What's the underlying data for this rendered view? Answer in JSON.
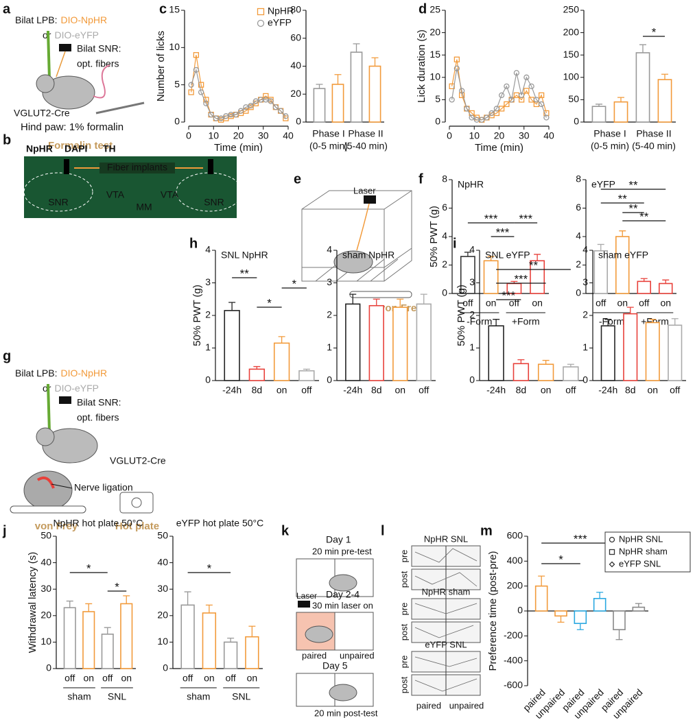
{
  "panel_labels": [
    "a",
    "b",
    "c",
    "d",
    "e",
    "f",
    "g",
    "h",
    "i",
    "j",
    "k",
    "l",
    "m"
  ],
  "diagrams": {
    "a": {
      "lpb": "Bilat LPB:",
      "nphr": "DIO-NpHR",
      "or": "or",
      "eyfp": "DIO-eYFP",
      "snr": "Bilat SNR:",
      "fibers": "opt. fibers",
      "cre": "VGLUT2-Cre",
      "paw": "Hind paw: 1% formalin",
      "test": "Formalin test"
    },
    "b": {
      "nphr": "NpHR",
      "dapi": "DAPI",
      "th": "TH",
      "fiber": "Fiber implants",
      "regions": [
        "SNR",
        "VTA",
        "VTA",
        "SNR",
        "MM"
      ]
    },
    "e": {
      "laser": "Laser",
      "test": "von Frey"
    },
    "g": {
      "lpb": "Bilat LPB:",
      "nphr": "DIO-NpHR",
      "or": "or",
      "eyfp": "DIO-eYFP",
      "snr": "Bilat SNR:",
      "fibers": "opt. fibers",
      "cre": "VGLUT2-Cre",
      "ligation": "Nerve ligation",
      "test1": "von Frey",
      "test2": "Hot plate"
    },
    "k": {
      "day1": "Day 1",
      "pre": "20 min pre-test",
      "laser": "Laser",
      "day2": "Day 2-4",
      "laser_on": "30 min laser on",
      "paired": "paired",
      "unpaired": "unpaired",
      "day5": "Day 5",
      "post": "20 min post-test"
    },
    "l": {
      "rows": [
        {
          "title": "NpHR SNL",
          "labels": [
            "pre",
            "post"
          ]
        },
        {
          "title": "NpHR sham",
          "labels": [
            "pre",
            "post"
          ]
        },
        {
          "title": "eYFP SNL",
          "labels": [
            "pre",
            "post"
          ]
        }
      ],
      "paired": "paired",
      "unpaired": "unpaired"
    }
  },
  "chart_data": [
    {
      "type": "line",
      "ylabel": "Number of licks",
      "xlabel": "Time (min)",
      "legend": "upper right",
      "x": [
        1,
        3,
        5,
        7,
        9,
        11,
        13,
        15,
        17,
        19,
        21,
        23,
        25,
        27,
        29,
        31,
        33,
        35,
        37,
        39
      ],
      "xlim": [
        0,
        40
      ],
      "xticks": [
        0,
        10,
        20,
        30,
        40
      ],
      "ylim": [
        0,
        15
      ],
      "yticks": [
        0,
        5,
        10,
        15
      ],
      "series": [
        {
          "name": "NpHR",
          "color": "#f29a3a",
          "marker": "square",
          "values": [
            4,
            9,
            5,
            3,
            1,
            0.5,
            0.3,
            0.5,
            0.8,
            1,
            1.2,
            1.5,
            2,
            2.5,
            3,
            3.5,
            3,
            2,
            1.5,
            0.5
          ]
        },
        {
          "name": "eYFP",
          "color": "#999999",
          "marker": "circle",
          "values": [
            5,
            7,
            4,
            2.5,
            1,
            0.5,
            0.5,
            0.8,
            1,
            1,
            1.5,
            2,
            2.2,
            2.8,
            3,
            3,
            2.8,
            2,
            1.5,
            0.8
          ]
        }
      ]
    },
    {
      "type": "bar",
      "groups": [
        "Phase I",
        "Phase II"
      ],
      "group_sublabels": [
        "(0-5 min)",
        "(5-40 min)"
      ],
      "values": [
        24,
        27,
        50,
        40
      ],
      "errors": [
        3,
        7,
        6,
        6
      ],
      "colors": [
        "#999999",
        "#f29a3a",
        "#999999",
        "#f29a3a"
      ],
      "ylim": [
        0,
        80
      ],
      "yticks": [
        0,
        20,
        40,
        60,
        80
      ]
    },
    {
      "type": "line",
      "ylabel": "Lick duration (s)",
      "xlabel": "Time (min)",
      "x": [
        1,
        3,
        5,
        7,
        9,
        11,
        13,
        15,
        17,
        19,
        21,
        23,
        25,
        27,
        29,
        31,
        33,
        35,
        37,
        39
      ],
      "xlim": [
        0,
        40
      ],
      "xticks": [
        0,
        10,
        20,
        30,
        40
      ],
      "ylim": [
        0,
        25
      ],
      "yticks": [
        0,
        5,
        10,
        15,
        20,
        25
      ],
      "series": [
        {
          "name": "NpHR",
          "color": "#f29a3a",
          "marker": "square",
          "values": [
            8,
            14,
            6,
            3,
            2,
            1,
            0.5,
            1,
            1.5,
            2,
            3,
            4,
            5,
            6,
            5,
            7,
            5,
            4,
            6,
            2
          ]
        },
        {
          "name": "eYFP",
          "color": "#999999",
          "marker": "circle",
          "values": [
            5,
            12,
            7,
            3,
            1,
            0.5,
            0.5,
            1,
            2,
            3,
            6,
            8,
            5,
            11,
            6,
            10,
            8,
            5,
            4,
            1
          ]
        }
      ]
    },
    {
      "type": "bar",
      "groups": [
        "Phase I",
        "Phase II"
      ],
      "group_sublabels": [
        "(0-5 min)",
        "(5-40 min)"
      ],
      "values": [
        35,
        45,
        155,
        95
      ],
      "errors": [
        5,
        10,
        18,
        12
      ],
      "colors": [
        "#999999",
        "#f29a3a",
        "#999999",
        "#f29a3a"
      ],
      "ylim": [
        0,
        250
      ],
      "yticks": [
        0,
        50,
        100,
        150,
        200,
        250
      ],
      "annotations": [
        "*"
      ]
    },
    {
      "type": "bar",
      "title": "NpHR",
      "ylabel": "50% PWT (g)",
      "categories": [
        "off",
        "on",
        "off",
        "on"
      ],
      "groups": [
        "-Form",
        "+Form"
      ],
      "values": [
        2.6,
        2.3,
        0.7,
        2.3
      ],
      "errors": [
        0.3,
        0.3,
        0.15,
        0.45
      ],
      "colors": [
        "#333333",
        "#f29a3a",
        "#e8403a",
        "#e8403a"
      ],
      "ylim": [
        0,
        8
      ],
      "yticks": [
        0,
        2,
        4,
        6,
        8
      ],
      "annotations": [
        "***",
        "***",
        "***"
      ]
    },
    {
      "type": "bar",
      "title": "eYFP",
      "categories": [
        "off",
        "on",
        "off",
        "on"
      ],
      "groups": [
        "-Form",
        "+Form"
      ],
      "values": [
        3.0,
        4.0,
        0.85,
        0.7
      ],
      "errors": [
        0.45,
        0.4,
        0.2,
        0.25
      ],
      "colors": [
        "#aaaaaa",
        "#f29a3a",
        "#e8403a",
        "#e8403a"
      ],
      "ylim": [
        0,
        8
      ],
      "yticks": [
        0,
        2,
        4,
        6,
        8
      ],
      "annotations": [
        "**",
        "**",
        "**",
        "**"
      ]
    },
    {
      "type": "bar",
      "title": "SNL NpHR",
      "ylabel": "50% PWT (g)",
      "categories": [
        "-24h",
        "8d",
        "on",
        "off"
      ],
      "values": [
        2.15,
        0.35,
        1.15,
        0.3
      ],
      "errors": [
        0.25,
        0.08,
        0.2,
        0.05
      ],
      "colors": [
        "#222222",
        "#e8403a",
        "#f29a3a",
        "#aaaaaa"
      ],
      "ylim": [
        0,
        4
      ],
      "yticks": [
        0,
        1,
        2,
        3,
        4
      ],
      "annotations": [
        "**",
        "*",
        "*"
      ]
    },
    {
      "type": "bar",
      "title": "sham NpHR",
      "categories": [
        "-24h",
        "8d",
        "on",
        "off"
      ],
      "values": [
        2.35,
        2.3,
        2.25,
        2.35
      ],
      "errors": [
        0.3,
        0.2,
        0.25,
        0.3
      ],
      "colors": [
        "#222222",
        "#e8403a",
        "#f29a3a",
        "#aaaaaa"
      ],
      "ylim": [
        0,
        4
      ],
      "yticks": [
        0,
        1,
        2,
        3,
        4
      ]
    },
    {
      "type": "bar",
      "title": "SNL eYFP",
      "ylabel": "50% PWT (g)",
      "categories": [
        "-24h",
        "8d",
        "on",
        "off"
      ],
      "values": [
        1.68,
        0.52,
        0.5,
        0.42
      ],
      "errors": [
        0.2,
        0.12,
        0.12,
        0.08
      ],
      "colors": [
        "#222222",
        "#e8403a",
        "#f29a3a",
        "#aaaaaa"
      ],
      "ylim": [
        0,
        4
      ],
      "yticks": [
        0,
        1,
        2,
        3,
        4
      ],
      "annotations": [
        "**",
        "***",
        "***"
      ]
    },
    {
      "type": "bar",
      "title": "sham eYFP",
      "categories": [
        "-24h",
        "8d",
        "on",
        "off"
      ],
      "values": [
        1.68,
        2.05,
        1.78,
        1.7
      ],
      "errors": [
        0.2,
        0.2,
        0.1,
        0.2
      ],
      "colors": [
        "#222222",
        "#e8403a",
        "#f29a3a",
        "#aaaaaa"
      ],
      "ylim": [
        0,
        4
      ],
      "yticks": [
        0,
        1,
        2,
        3,
        4
      ]
    },
    {
      "type": "bar",
      "title": "NpHR hot plate 50°C",
      "ylabel": "Withdrawal latency (s)",
      "categories": [
        "off",
        "on",
        "off",
        "on"
      ],
      "groups": [
        "sham",
        "SNL"
      ],
      "values": [
        23,
        21.5,
        13,
        24.5
      ],
      "errors": [
        2.5,
        3,
        2.5,
        3
      ],
      "colors": [
        "#999999",
        "#f29a3a",
        "#999999",
        "#f29a3a"
      ],
      "ylim": [
        0,
        50
      ],
      "yticks": [
        0,
        10,
        20,
        30,
        40,
        50
      ],
      "annotations": [
        "*",
        "*"
      ]
    },
    {
      "type": "bar",
      "title": "eYFP hot plate 50°C",
      "categories": [
        "off",
        "on",
        "off",
        "on"
      ],
      "groups": [
        "sham",
        "SNL"
      ],
      "values": [
        24,
        21,
        10,
        12
      ],
      "errors": [
        5,
        3,
        1.5,
        4
      ],
      "colors": [
        "#999999",
        "#f29a3a",
        "#999999",
        "#f29a3a"
      ],
      "ylim": [
        0,
        50
      ],
      "yticks": [
        0,
        10,
        20,
        30,
        40,
        50
      ],
      "annotations": [
        "*"
      ]
    },
    {
      "type": "bar",
      "ylabel": "Preference time (post-pre)",
      "categories": [
        "paired",
        "unpaired",
        "paired",
        "unpaired",
        "paired",
        "unpaired"
      ],
      "values": [
        200,
        -40,
        -100,
        100,
        -150,
        30
      ],
      "errors": [
        80,
        50,
        50,
        50,
        80,
        30
      ],
      "colors": [
        "#f29a3a",
        "#f29a3a",
        "#29a8e0",
        "#29a8e0",
        "#888888",
        "#888888"
      ],
      "ylim": [
        -600,
        600
      ],
      "yticks": [
        -600,
        -400,
        -200,
        0,
        200,
        400,
        600
      ],
      "annotations": [
        "*",
        "***"
      ],
      "legend": [
        {
          "name": "NpHR SNL",
          "color": "#f29a3a",
          "marker": "circle"
        },
        {
          "name": "NpHR sham",
          "color": "#29a8e0",
          "marker": "square"
        },
        {
          "name": "eYFP SNL",
          "color": "#888888",
          "marker": "diamond"
        }
      ]
    }
  ]
}
